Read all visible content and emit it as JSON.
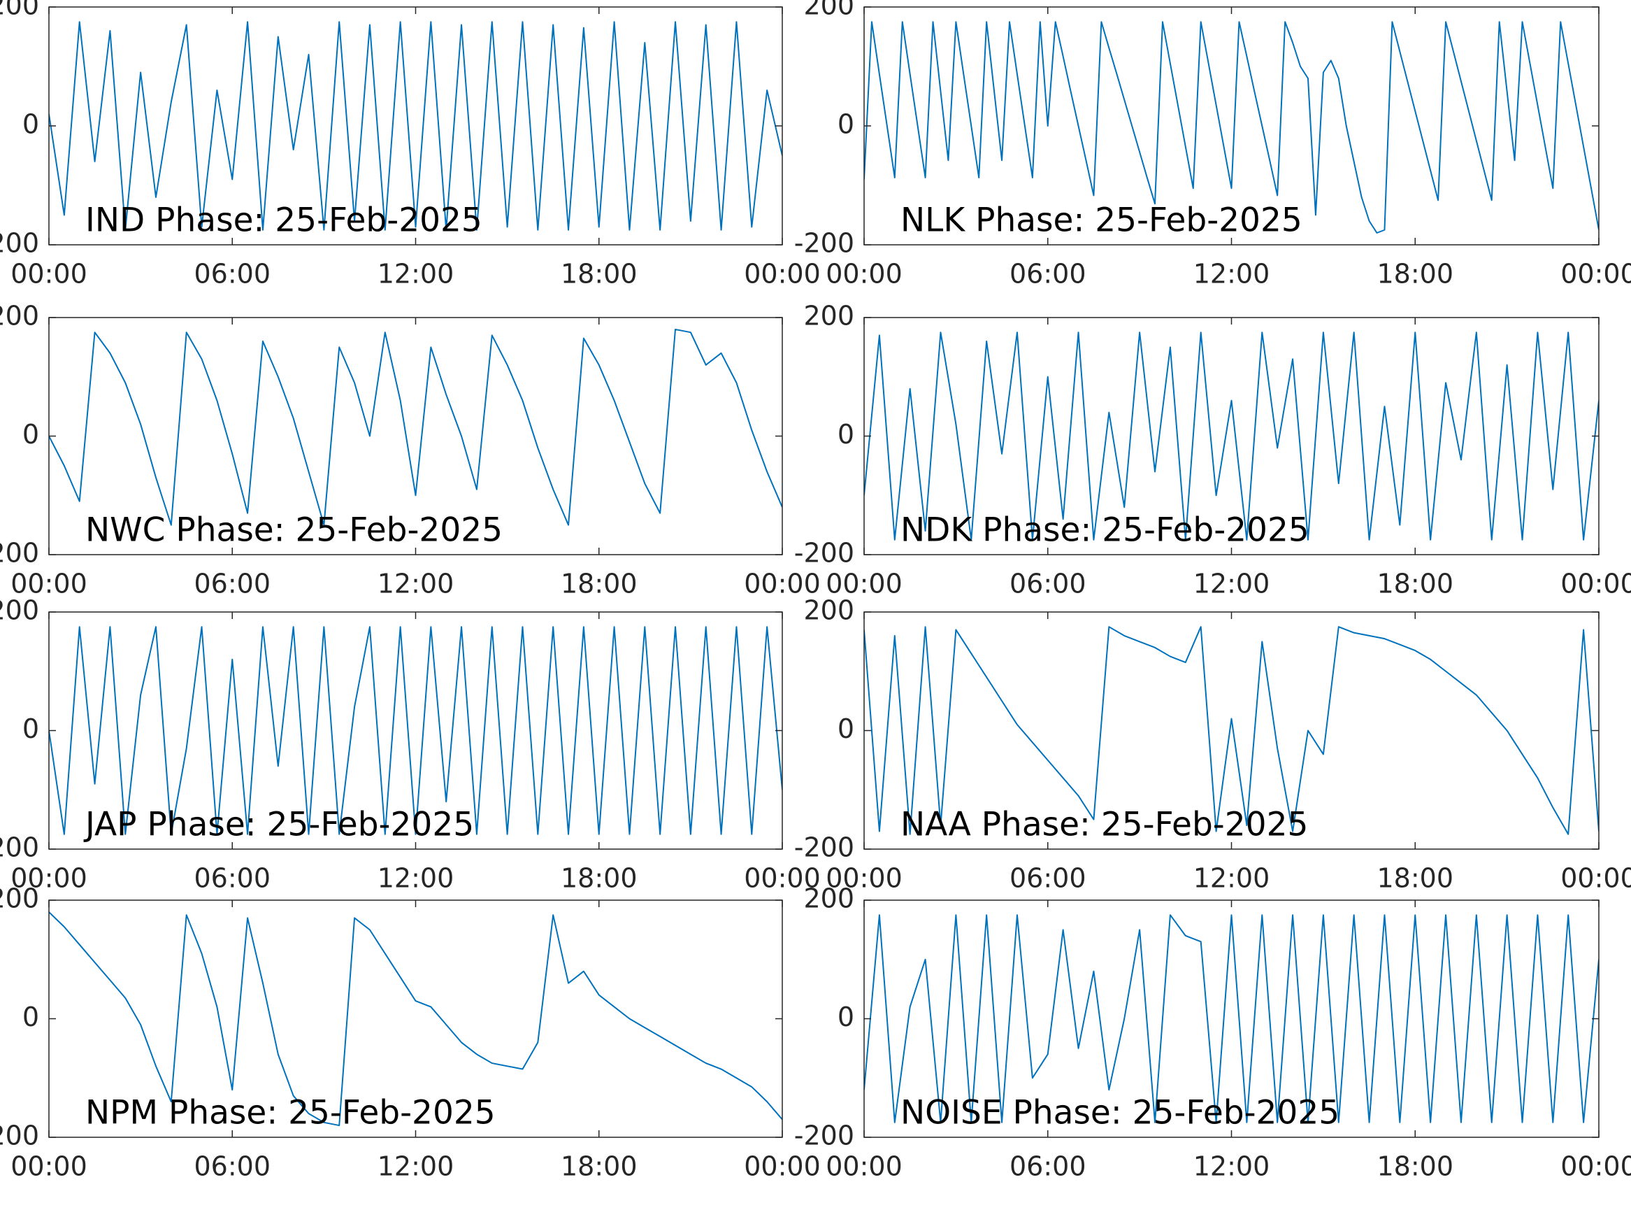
{
  "chart_data": [
    {
      "type": "line",
      "title": "IND Phase: 25-Feb-2025",
      "color": "#0072bd",
      "x": [
        0,
        0.5,
        1,
        1.5,
        2,
        2.5,
        3,
        3.5,
        4,
        4.5,
        5,
        5.5,
        6,
        6.5,
        7,
        7.5,
        8,
        8.5,
        9,
        9.5,
        10,
        10.5,
        11,
        11.5,
        12,
        12.5,
        13,
        13.5,
        14,
        14.5,
        15,
        15.5,
        16,
        16.5,
        17,
        17.5,
        18,
        18.5,
        19,
        19.5,
        20,
        20.5,
        21,
        21.5,
        22,
        22.5,
        23,
        23.5,
        24
      ],
      "values": [
        20,
        -150,
        175,
        -60,
        160,
        -175,
        90,
        -120,
        40,
        170,
        -170,
        60,
        -90,
        175,
        -175,
        150,
        -40,
        120,
        -175,
        175,
        -160,
        170,
        -175,
        175,
        -170,
        175,
        -175,
        170,
        -175,
        175,
        -170,
        175,
        -175,
        170,
        -175,
        165,
        -170,
        175,
        -175,
        140,
        -175,
        175,
        -160,
        170,
        -175,
        175,
        -170,
        60,
        -50
      ],
      "xlim": [
        0,
        24
      ],
      "xticks": [
        {
          "value": 0,
          "label": "00:00"
        },
        {
          "value": 6,
          "label": "06:00"
        },
        {
          "value": 12,
          "label": "12:00"
        },
        {
          "value": 18,
          "label": "18:00"
        },
        {
          "value": 24,
          "label": "00:00"
        }
      ],
      "ylim": [
        -200,
        200
      ],
      "yticks": [
        -200,
        0,
        200
      ]
    },
    {
      "type": "line",
      "title": "NLK Phase: 25-Feb-2025",
      "color": "#0072bd",
      "x": [
        0,
        0.25,
        0.5,
        0.75,
        1,
        1.25,
        1.5,
        1.75,
        2,
        2.25,
        2.5,
        2.75,
        3,
        3.25,
        3.5,
        3.75,
        4,
        4.25,
        4.5,
        4.75,
        5,
        5.25,
        5.5,
        5.75,
        6,
        6.25,
        6.5,
        6.75,
        7,
        7.25,
        7.5,
        7.75,
        8,
        8.25,
        8.5,
        8.75,
        9,
        9.25,
        9.5,
        9.75,
        10,
        10.25,
        10.5,
        10.75,
        11,
        11.25,
        11.5,
        11.75,
        12,
        12.25,
        12.5,
        12.75,
        13,
        13.25,
        13.5,
        13.75,
        14,
        14.25,
        14.5,
        14.75,
        15,
        15.25,
        15.5,
        15.75,
        16,
        16.25,
        16.5,
        16.75,
        17,
        17.25,
        17.5,
        17.75,
        18,
        18.25,
        18.5,
        18.75,
        19,
        19.25,
        19.5,
        19.75,
        20,
        20.25,
        20.5,
        20.75,
        21,
        21.25,
        21.5,
        21.75,
        22,
        22.25,
        22.5,
        22.75,
        23,
        23.25,
        23.5,
        23.75,
        24
      ],
      "values": [
        -90,
        175,
        87,
        0,
        -87,
        175,
        87,
        0,
        -87,
        175,
        58,
        -58,
        175,
        87,
        0,
        -87,
        175,
        58,
        -58,
        175,
        87,
        0,
        -87,
        175,
        0,
        175,
        117,
        58,
        0,
        -58,
        -117,
        175,
        131,
        88,
        44,
        0,
        -44,
        -88,
        -131,
        175,
        105,
        35,
        -35,
        -105,
        175,
        105,
        35,
        -35,
        -105,
        175,
        117,
        58,
        0,
        -58,
        -117,
        175,
        140,
        100,
        80,
        -150,
        90,
        110,
        80,
        0,
        -60,
        -120,
        -160,
        -180,
        -175,
        175,
        125,
        75,
        25,
        -25,
        -75,
        -125,
        175,
        125,
        75,
        25,
        -25,
        -75,
        -125,
        175,
        58,
        -58,
        175,
        105,
        35,
        -35,
        -105,
        175,
        105,
        35,
        -35,
        -105,
        -175
      ],
      "xlim": [
        0,
        24
      ],
      "xticks": [
        {
          "value": 0,
          "label": "00:00"
        },
        {
          "value": 6,
          "label": "06:00"
        },
        {
          "value": 12,
          "label": "12:00"
        },
        {
          "value": 18,
          "label": "18:00"
        },
        {
          "value": 24,
          "label": "00:00"
        }
      ],
      "ylim": [
        -200,
        200
      ],
      "yticks": [
        -200,
        0,
        200
      ]
    },
    {
      "type": "line",
      "title": "NWC Phase: 25-Feb-2025",
      "color": "#0072bd",
      "x": [
        0,
        0.5,
        1,
        1.5,
        2,
        2.5,
        3,
        3.5,
        4,
        4.5,
        5,
        5.5,
        6,
        6.5,
        7,
        7.5,
        8,
        8.5,
        9,
        9.5,
        10,
        10.5,
        11,
        11.5,
        12,
        12.5,
        13,
        13.5,
        14,
        14.5,
        15,
        15.5,
        16,
        16.5,
        17,
        17.5,
        18,
        18.5,
        19,
        19.5,
        20,
        20.5,
        21,
        21.5,
        22,
        22.5,
        23,
        23.5,
        24
      ],
      "values": [
        0,
        -50,
        -110,
        175,
        140,
        90,
        20,
        -70,
        -150,
        175,
        130,
        60,
        -30,
        -130,
        160,
        100,
        30,
        -60,
        -150,
        150,
        90,
        0,
        175,
        60,
        -100,
        150,
        70,
        0,
        -90,
        170,
        120,
        60,
        -20,
        -90,
        -150,
        165,
        120,
        60,
        -10,
        -80,
        -130,
        180,
        175,
        120,
        140,
        90,
        10,
        -60,
        -120
      ],
      "xlim": [
        0,
        24
      ],
      "xticks": [
        {
          "value": 0,
          "label": "00:00"
        },
        {
          "value": 6,
          "label": "06:00"
        },
        {
          "value": 12,
          "label": "12:00"
        },
        {
          "value": 18,
          "label": "18:00"
        },
        {
          "value": 24,
          "label": "00:00"
        }
      ],
      "ylim": [
        -200,
        200
      ],
      "yticks": [
        -200,
        0,
        200
      ]
    },
    {
      "type": "line",
      "title": "NDK Phase: 25-Feb-2025",
      "color": "#0072bd",
      "x": [
        0,
        0.5,
        1,
        1.5,
        2,
        2.5,
        3,
        3.5,
        4,
        4.5,
        5,
        5.5,
        6,
        6.5,
        7,
        7.5,
        8,
        8.5,
        9,
        9.5,
        10,
        10.5,
        11,
        11.5,
        12,
        12.5,
        13,
        13.5,
        14,
        14.5,
        15,
        15.5,
        16,
        16.5,
        17,
        17.5,
        18,
        18.5,
        19,
        19.5,
        20,
        20.5,
        21,
        21.5,
        22,
        22.5,
        23,
        23.5,
        24
      ],
      "values": [
        -100,
        170,
        -175,
        80,
        -160,
        175,
        20,
        -175,
        160,
        -30,
        175,
        -175,
        100,
        -140,
        175,
        -175,
        40,
        -120,
        175,
        -60,
        150,
        -175,
        175,
        -100,
        60,
        -175,
        175,
        -20,
        130,
        -175,
        175,
        -80,
        175,
        -175,
        50,
        -150,
        175,
        -175,
        90,
        -40,
        175,
        -175,
        120,
        -175,
        175,
        -90,
        175,
        -175,
        60
      ],
      "xlim": [
        0,
        24
      ],
      "xticks": [
        {
          "value": 0,
          "label": "00:00"
        },
        {
          "value": 6,
          "label": "06:00"
        },
        {
          "value": 12,
          "label": "12:00"
        },
        {
          "value": 18,
          "label": "18:00"
        },
        {
          "value": 24,
          "label": "00:00"
        }
      ],
      "ylim": [
        -200,
        200
      ],
      "yticks": [
        -200,
        0,
        200
      ]
    },
    {
      "type": "line",
      "title": "JAP Phase: 25-Feb-2025",
      "color": "#0072bd",
      "x": [
        0,
        0.5,
        1,
        1.5,
        2,
        2.5,
        3,
        3.5,
        4,
        4.5,
        5,
        5.5,
        6,
        6.5,
        7,
        7.5,
        8,
        8.5,
        9,
        9.5,
        10,
        10.5,
        11,
        11.5,
        12,
        12.5,
        13,
        13.5,
        14,
        14.5,
        15,
        15.5,
        16,
        16.5,
        17,
        17.5,
        18,
        18.5,
        19,
        19.5,
        20,
        20.5,
        21,
        21.5,
        22,
        22.5,
        23,
        23.5,
        24
      ],
      "values": [
        0,
        -175,
        175,
        -90,
        175,
        -175,
        60,
        175,
        -175,
        -30,
        175,
        -175,
        120,
        -175,
        175,
        -60,
        175,
        -175,
        175,
        -175,
        40,
        175,
        -175,
        175,
        -175,
        175,
        -120,
        175,
        -175,
        175,
        -175,
        175,
        -175,
        175,
        -175,
        175,
        -175,
        175,
        -175,
        175,
        -175,
        175,
        -175,
        175,
        -175,
        175,
        -175,
        175,
        -100
      ],
      "xlim": [
        0,
        24
      ],
      "xticks": [
        {
          "value": 0,
          "label": "00:00"
        },
        {
          "value": 6,
          "label": "06:00"
        },
        {
          "value": 12,
          "label": "12:00"
        },
        {
          "value": 18,
          "label": "18:00"
        },
        {
          "value": 24,
          "label": "00:00"
        }
      ],
      "ylim": [
        -200,
        200
      ],
      "yticks": [
        -200,
        0,
        200
      ]
    },
    {
      "type": "line",
      "title": "NAA Phase: 25-Feb-2025",
      "color": "#0072bd",
      "x": [
        0,
        0.5,
        1,
        1.5,
        2,
        2.5,
        3,
        3.5,
        4,
        4.5,
        5,
        5.5,
        6,
        6.5,
        7,
        7.5,
        8,
        8.5,
        9,
        9.5,
        10,
        10.5,
        11,
        11.5,
        12,
        12.5,
        13,
        13.5,
        14,
        14.5,
        15,
        15.5,
        16,
        16.5,
        17,
        17.5,
        18,
        18.5,
        19,
        19.5,
        20,
        20.5,
        21,
        21.5,
        22,
        22.5,
        23,
        23.5,
        24
      ],
      "values": [
        170,
        -170,
        160,
        -175,
        175,
        -160,
        170,
        130,
        90,
        50,
        10,
        -20,
        -50,
        -80,
        -110,
        -150,
        175,
        160,
        150,
        140,
        125,
        115,
        175,
        -170,
        20,
        -160,
        150,
        -30,
        -170,
        0,
        -40,
        175,
        165,
        160,
        155,
        145,
        135,
        120,
        100,
        80,
        60,
        30,
        0,
        -40,
        -80,
        -130,
        -175,
        170,
        -170
      ],
      "xlim": [
        0,
        24
      ],
      "xticks": [
        {
          "value": 0,
          "label": "00:00"
        },
        {
          "value": 6,
          "label": "06:00"
        },
        {
          "value": 12,
          "label": "12:00"
        },
        {
          "value": 18,
          "label": "18:00"
        },
        {
          "value": 24,
          "label": "00:00"
        }
      ],
      "ylim": [
        -200,
        200
      ],
      "yticks": [
        -200,
        0,
        200
      ]
    },
    {
      "type": "line",
      "title": "NPM Phase: 25-Feb-2025",
      "color": "#0072bd",
      "x": [
        0,
        0.5,
        1,
        1.5,
        2,
        2.5,
        3,
        3.5,
        4,
        4.5,
        5,
        5.5,
        6,
        6.5,
        7,
        7.5,
        8,
        8.5,
        9,
        9.5,
        10,
        10.5,
        11,
        11.5,
        12,
        12.5,
        13,
        13.5,
        14,
        14.5,
        15,
        15.5,
        16,
        16.5,
        17,
        17.5,
        18,
        18.5,
        19,
        19.5,
        20,
        20.5,
        21,
        21.5,
        22,
        22.5,
        23,
        23.5,
        24
      ],
      "values": [
        180,
        155,
        125,
        95,
        65,
        35,
        -10,
        -80,
        -140,
        175,
        110,
        20,
        -120,
        170,
        60,
        -60,
        -130,
        -160,
        -175,
        -180,
        170,
        150,
        110,
        70,
        30,
        20,
        -10,
        -40,
        -60,
        -75,
        -80,
        -85,
        -40,
        175,
        60,
        80,
        40,
        20,
        0,
        -15,
        -30,
        -45,
        -60,
        -75,
        -85,
        -100,
        -115,
        -140,
        -170
      ],
      "xlim": [
        0,
        24
      ],
      "xticks": [
        {
          "value": 0,
          "label": "00:00"
        },
        {
          "value": 6,
          "label": "06:00"
        },
        {
          "value": 12,
          "label": "12:00"
        },
        {
          "value": 18,
          "label": "18:00"
        },
        {
          "value": 24,
          "label": "00:00"
        }
      ],
      "ylim": [
        -200,
        200
      ],
      "yticks": [
        -200,
        0,
        200
      ]
    },
    {
      "type": "line",
      "title": "NOISE Phase: 25-Feb-2025",
      "color": "#0072bd",
      "x": [
        0,
        0.5,
        1,
        1.5,
        2,
        2.5,
        3,
        3.5,
        4,
        4.5,
        5,
        5.5,
        6,
        6.5,
        7,
        7.5,
        8,
        8.5,
        9,
        9.5,
        10,
        10.5,
        11,
        11.5,
        12,
        12.5,
        13,
        13.5,
        14,
        14.5,
        15,
        15.5,
        16,
        16.5,
        17,
        17.5,
        18,
        18.5,
        19,
        19.5,
        20,
        20.5,
        21,
        21.5,
        22,
        22.5,
        23,
        23.5,
        24
      ],
      "values": [
        -120,
        175,
        -175,
        20,
        100,
        -175,
        175,
        -175,
        175,
        -175,
        175,
        -100,
        -60,
        150,
        -50,
        80,
        -120,
        0,
        150,
        -175,
        175,
        140,
        130,
        -175,
        175,
        -175,
        175,
        -175,
        175,
        -175,
        175,
        -175,
        175,
        -175,
        175,
        -175,
        175,
        -175,
        175,
        -175,
        175,
        -175,
        175,
        -175,
        175,
        -175,
        175,
        -175,
        100
      ],
      "xlim": [
        0,
        24
      ],
      "xticks": [
        {
          "value": 0,
          "label": "00:00"
        },
        {
          "value": 6,
          "label": "06:00"
        },
        {
          "value": 12,
          "label": "12:00"
        },
        {
          "value": 18,
          "label": "18:00"
        },
        {
          "value": 24,
          "label": "00:00"
        }
      ],
      "ylim": [
        -200,
        200
      ],
      "yticks": [
        -200,
        0,
        200
      ]
    }
  ]
}
